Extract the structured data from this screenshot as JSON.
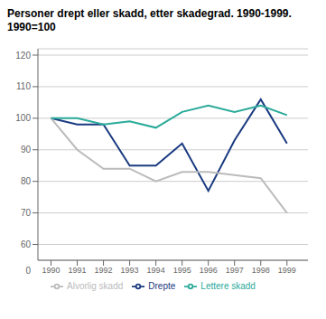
{
  "chart_data": {
    "type": "line",
    "title": "Personer drept eller skadd, etter skadegrad.  1990-1999.",
    "subtitle": "1990=100",
    "x": [
      1990,
      1991,
      1992,
      1993,
      1994,
      1995,
      1996,
      1997,
      1998,
      1999
    ],
    "series": [
      {
        "name": "Drepte",
        "color": "#1a3a80",
        "values": [
          100,
          98,
          98,
          85,
          85,
          92,
          77,
          93,
          106,
          92
        ]
      },
      {
        "name": "Alvorlig skadd",
        "color": "#bbbbbb",
        "values": [
          100,
          90,
          84,
          84,
          80,
          83,
          83,
          82,
          81,
          70
        ]
      },
      {
        "name": "Lettere skadd",
        "color": "#2aaa9a",
        "values": [
          100,
          100,
          98,
          99,
          97,
          102,
          104,
          102,
          104,
          101
        ]
      }
    ],
    "xlim": [
      1989.5,
      1999.8
    ],
    "xticks": [
      1990,
      1991,
      1992,
      1993,
      1994,
      1995,
      1996,
      1997,
      1998,
      1999
    ],
    "ylim": [
      55,
      122
    ],
    "yticks": [
      60,
      70,
      80,
      90,
      100,
      110,
      120
    ],
    "grid": true,
    "legend": "bottom",
    "annotations": [
      "0"
    ]
  }
}
